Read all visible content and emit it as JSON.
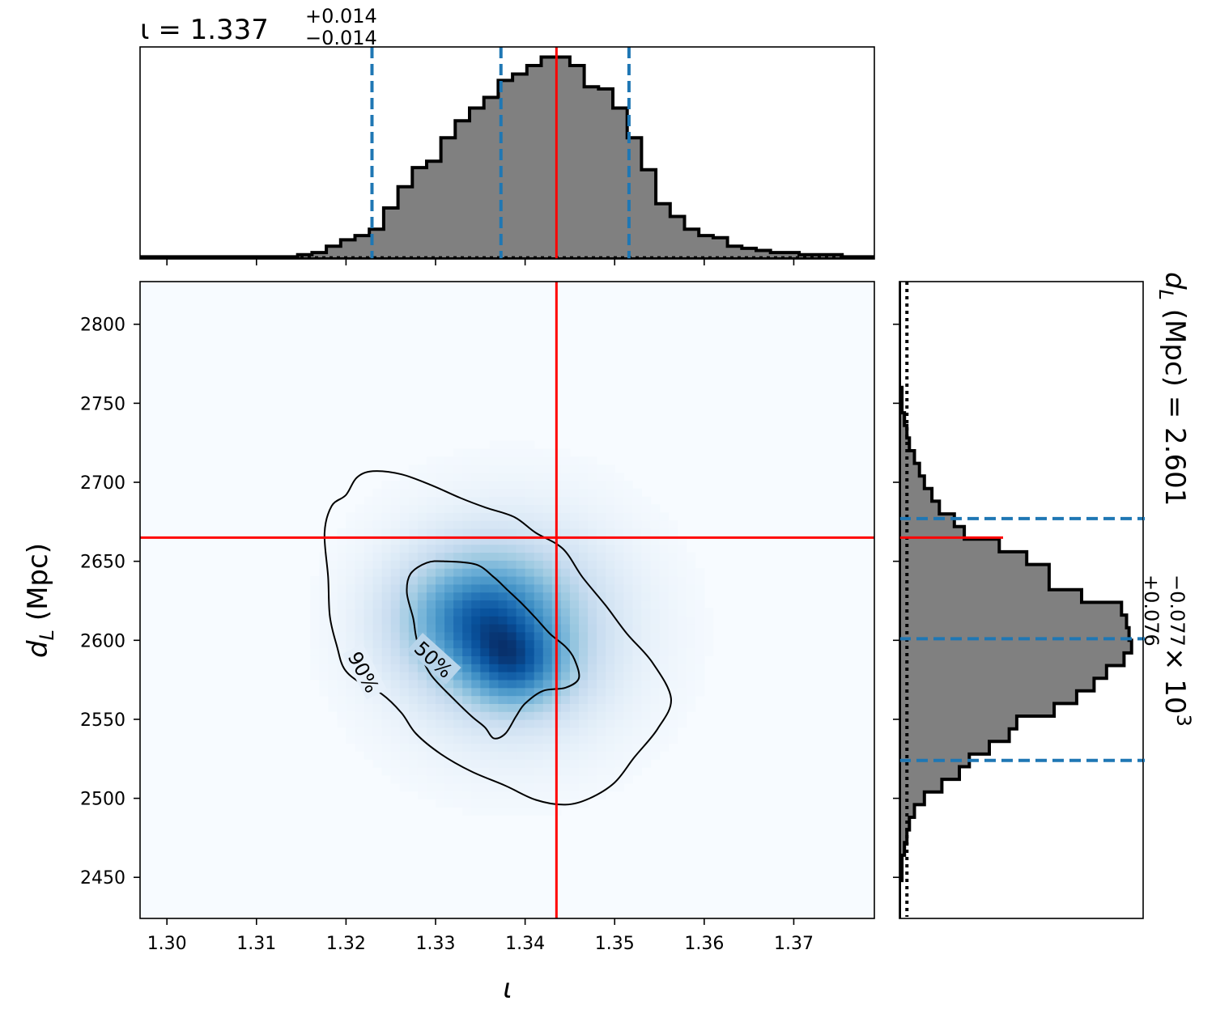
{
  "chart_data": [
    {
      "panel": "top-marginal",
      "type": "histogram",
      "title": {
        "prefix": "ι = 1.337",
        "upper": "+0.014",
        "lower": "−0.014"
      },
      "xlim": [
        1.297,
        1.379
      ],
      "x_ticks": [
        1.3,
        1.31,
        1.32,
        1.33,
        1.34,
        1.35,
        1.36,
        1.37
      ],
      "bin_edges": [
        1.297,
        1.2986,
        1.3002,
        1.3018,
        1.3034,
        1.305,
        1.3066,
        1.3082,
        1.3098,
        1.3114,
        1.313,
        1.3146,
        1.3162,
        1.3178,
        1.3194,
        1.321,
        1.3226,
        1.3242,
        1.3258,
        1.3274,
        1.329,
        1.3306,
        1.3322,
        1.3338,
        1.3354,
        1.337,
        1.3386,
        1.3402,
        1.3418,
        1.3434,
        1.345,
        1.3466,
        1.3482,
        1.3498,
        1.3514,
        1.353,
        1.3546,
        1.3562,
        1.3578,
        1.3594,
        1.361,
        1.3626,
        1.3642,
        1.3658,
        1.3674,
        1.369,
        1.3706,
        1.3722,
        1.3738,
        1.3754,
        1.379
      ],
      "counts": [
        0.01,
        0.01,
        0.01,
        0.01,
        0.01,
        0.01,
        0.01,
        0.01,
        0.01,
        0.01,
        0.01,
        0.02,
        0.03,
        0.06,
        0.09,
        0.11,
        0.14,
        0.24,
        0.34,
        0.43,
        0.46,
        0.57,
        0.65,
        0.71,
        0.76,
        0.84,
        0.87,
        0.91,
        0.95,
        0.95,
        0.91,
        0.81,
        0.8,
        0.71,
        0.57,
        0.42,
        0.26,
        0.2,
        0.14,
        0.11,
        0.1,
        0.06,
        0.05,
        0.04,
        0.03,
        0.03,
        0.02,
        0.02,
        0.02,
        0.01
      ],
      "prior_level": 0.01,
      "quantile_lines": [
        1.3229,
        1.3373,
        1.3516
      ],
      "truth": 1.3435,
      "colors": {
        "fill": "#808080",
        "edge": "#000000",
        "quantile": "#1f77b4",
        "truth": "#ff0000"
      }
    },
    {
      "panel": "joint",
      "type": "heatmap",
      "xlabel": "ι",
      "ylabel": "d",
      "ylabel_sub": "L",
      "ylabel_unit": " (Mpc)",
      "xlim": [
        1.297,
        1.379
      ],
      "ylim": [
        2424,
        2827
      ],
      "x_ticks": [
        1.3,
        1.31,
        1.32,
        1.33,
        1.34,
        1.35,
        1.36,
        1.37
      ],
      "y_ticks": [
        2450,
        2500,
        2550,
        2600,
        2650,
        2700,
        2750,
        2800
      ],
      "density_peaks": [
        {
          "x": 1.335,
          "y": 2615,
          "sx": 0.006,
          "sy": 26,
          "w": 1.0
        },
        {
          "x": 1.339,
          "y": 2582,
          "sx": 0.004,
          "sy": 18,
          "w": 0.75
        },
        {
          "x": 1.3385,
          "y": 2606,
          "sx": 0.009,
          "sy": 48,
          "w": 0.55
        }
      ],
      "contour_labels": [
        "50%",
        "90%"
      ],
      "contour_50": [
        [
          1.3275,
          2614
        ],
        [
          1.3268,
          2630
        ],
        [
          1.3272,
          2642
        ],
        [
          1.329,
          2649
        ],
        [
          1.331,
          2650
        ],
        [
          1.3345,
          2648
        ],
        [
          1.3365,
          2640
        ],
        [
          1.338,
          2632
        ],
        [
          1.3395,
          2624
        ],
        [
          1.3412,
          2614
        ],
        [
          1.3428,
          2604
        ],
        [
          1.3445,
          2596
        ],
        [
          1.3455,
          2588
        ],
        [
          1.346,
          2576
        ],
        [
          1.3445,
          2570
        ],
        [
          1.342,
          2568
        ],
        [
          1.34,
          2560
        ],
        [
          1.339,
          2552
        ],
        [
          1.3378,
          2541
        ],
        [
          1.3365,
          2538
        ],
        [
          1.3355,
          2545
        ],
        [
          1.334,
          2552
        ],
        [
          1.332,
          2563
        ],
        [
          1.3295,
          2578
        ],
        [
          1.3283,
          2592
        ],
        [
          1.3278,
          2603
        ]
      ],
      "contour_90": [
        [
          1.319,
          2596
        ],
        [
          1.3182,
          2615
        ],
        [
          1.318,
          2640
        ],
        [
          1.3176,
          2668
        ],
        [
          1.3184,
          2685
        ],
        [
          1.32,
          2692
        ],
        [
          1.3212,
          2703
        ],
        [
          1.323,
          2707
        ],
        [
          1.3262,
          2705
        ],
        [
          1.3296,
          2698
        ],
        [
          1.3328,
          2690
        ],
        [
          1.3356,
          2684
        ],
        [
          1.3388,
          2678
        ],
        [
          1.3412,
          2668
        ],
        [
          1.3442,
          2658
        ],
        [
          1.3464,
          2640
        ],
        [
          1.349,
          2622
        ],
        [
          1.3514,
          2604
        ],
        [
          1.3542,
          2586
        ],
        [
          1.3563,
          2563
        ],
        [
          1.3548,
          2544
        ],
        [
          1.3522,
          2526
        ],
        [
          1.35,
          2510
        ],
        [
          1.3472,
          2500
        ],
        [
          1.3445,
          2496
        ],
        [
          1.3412,
          2499
        ],
        [
          1.3378,
          2508
        ],
        [
          1.334,
          2517
        ],
        [
          1.3306,
          2528
        ],
        [
          1.3278,
          2541
        ],
        [
          1.3262,
          2554
        ],
        [
          1.324,
          2566
        ],
        [
          1.3216,
          2573
        ],
        [
          1.3198,
          2582
        ]
      ],
      "truth": {
        "x": 1.3435,
        "y": 2665
      },
      "colors": {
        "cmap_low": "#f7fbff",
        "cmap_high": "#08306b",
        "contour": "#000000",
        "truth": "#ff0000"
      }
    },
    {
      "panel": "right-marginal",
      "type": "histogram",
      "orientation": "horizontal",
      "title": {
        "prefix": "d",
        "prefix_sub": "L",
        "prefix_rest": " (Mpc) = 2.601",
        "upper": "+0.076",
        "lower": "−0.077",
        "suffix": " × 10",
        "suffix_exp": "3"
      },
      "ylim": [
        2424,
        2827
      ],
      "y_ticks": [
        2450,
        2500,
        2550,
        2600,
        2650,
        2700,
        2750,
        2800
      ],
      "bin_edges": [
        2424,
        2432,
        2440,
        2448,
        2456,
        2464,
        2472,
        2480,
        2488,
        2496,
        2504,
        2512,
        2520,
        2528,
        2536,
        2544,
        2552,
        2560,
        2568,
        2576,
        2584,
        2592,
        2600,
        2608,
        2616,
        2624,
        2632,
        2640,
        2648,
        2656,
        2664,
        2672,
        2680,
        2688,
        2696,
        2704,
        2712,
        2720,
        2728,
        2736,
        2744,
        2752,
        2760,
        2768,
        2776,
        2784,
        2792,
        2800,
        2808,
        2816,
        2827
      ],
      "counts": [
        0.0,
        0.0,
        0.0,
        0.01,
        0.01,
        0.02,
        0.03,
        0.04,
        0.06,
        0.1,
        0.17,
        0.24,
        0.28,
        0.36,
        0.44,
        0.47,
        0.62,
        0.71,
        0.78,
        0.83,
        0.9,
        0.93,
        0.92,
        0.91,
        0.89,
        0.73,
        0.6,
        0.6,
        0.51,
        0.4,
        0.26,
        0.22,
        0.16,
        0.13,
        0.1,
        0.08,
        0.06,
        0.04,
        0.03,
        0.02,
        0.01,
        0.01,
        0.0,
        0.0,
        0.0,
        0.0,
        0.0,
        0.0,
        0.0,
        0.0
      ],
      "prior_level": 0.03,
      "quantile_lines": [
        2524,
        2601,
        2677
      ],
      "truth": 2665,
      "colors": {
        "fill": "#808080",
        "edge": "#000000",
        "quantile": "#1f77b4",
        "truth": "#ff0000"
      }
    }
  ]
}
